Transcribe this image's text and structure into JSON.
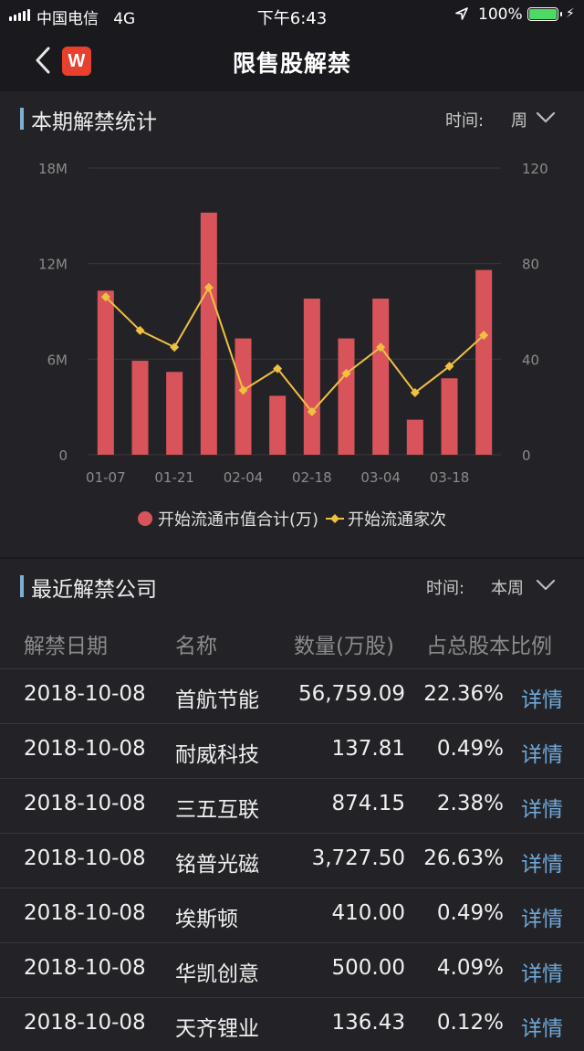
{
  "status_bar": {
    "carrier": "中国电信",
    "network": "4G",
    "time": "下午6:43",
    "battery": "100%",
    "battery_level": 1.0
  },
  "nav": {
    "title": "限售股解禁",
    "logo_letter": "W",
    "back_icon": "chevron-left-icon"
  },
  "stats_section": {
    "title": "本期解禁统计",
    "time_label": "时间:",
    "time_value": "周"
  },
  "chart_data": {
    "type": "bar",
    "x_tick_labels": [
      "01-07",
      "01-21",
      "02-04",
      "02-18",
      "03-04",
      "03-18"
    ],
    "series": [
      {
        "name": "开始流通市值合计(万)",
        "type": "bar",
        "color": "#d9545a",
        "axis": "left",
        "values": [
          10.3,
          5.9,
          5.2,
          15.2,
          7.3,
          3.7,
          9.8,
          7.3,
          9.8,
          2.2,
          4.8,
          11.6
        ]
      },
      {
        "name": "开始流通家次",
        "type": "line",
        "color": "#f0c040",
        "axis": "right",
        "values": [
          66,
          52,
          45,
          70,
          27,
          36,
          18,
          34,
          45,
          26,
          37,
          50
        ]
      }
    ],
    "y_left": {
      "ticks": [
        "0",
        "6M",
        "12M",
        "18M"
      ],
      "range": [
        0,
        18
      ]
    },
    "y_right": {
      "ticks": [
        "0",
        "40",
        "80",
        "120"
      ],
      "range": [
        0,
        120
      ]
    },
    "grid": true,
    "legend_position": "bottom"
  },
  "recent_section": {
    "title": "最近解禁公司",
    "time_label": "时间:",
    "time_value": "本周"
  },
  "table": {
    "headers": {
      "date": "解禁日期",
      "name": "名称",
      "qty": "数量(万股)",
      "pct": "占总股本比例"
    },
    "detail_label": "详情",
    "rows": [
      {
        "date": "2018-10-08",
        "name": "首航节能",
        "qty": "56,759.09",
        "pct": "22.36%"
      },
      {
        "date": "2018-10-08",
        "name": "耐威科技",
        "qty": "137.81",
        "pct": "0.49%"
      },
      {
        "date": "2018-10-08",
        "name": "三五互联",
        "qty": "874.15",
        "pct": "2.38%"
      },
      {
        "date": "2018-10-08",
        "name": "铭普光磁",
        "qty": "3,727.50",
        "pct": "26.63%"
      },
      {
        "date": "2018-10-08",
        "name": "埃斯顿",
        "qty": "410.00",
        "pct": "0.49%"
      },
      {
        "date": "2018-10-08",
        "name": "华凯创意",
        "qty": "500.00",
        "pct": "4.09%"
      },
      {
        "date": "2018-10-08",
        "name": "天齐锂业",
        "qty": "136.43",
        "pct": "0.12%"
      }
    ]
  }
}
